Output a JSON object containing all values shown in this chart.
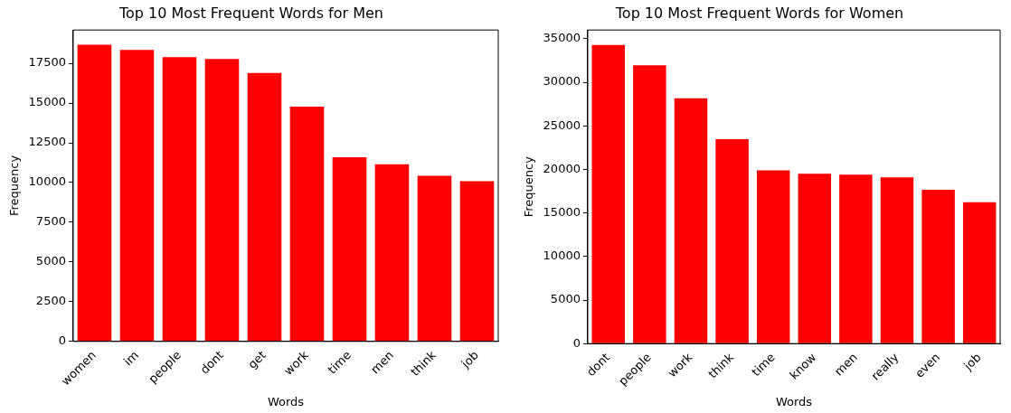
{
  "chart_data": [
    {
      "type": "bar",
      "title": "Top 10 Most Frequent Words for Men",
      "xlabel": "Words",
      "ylabel": "Frequency",
      "categories": [
        "women",
        "im",
        "people",
        "dont",
        "get",
        "work",
        "time",
        "men",
        "think",
        "job"
      ],
      "values": [
        18670,
        18340,
        17890,
        17780,
        16890,
        14770,
        11590,
        11150,
        10420,
        10090
      ],
      "color": "#ff0000",
      "ylim": [
        0,
        19600
      ],
      "yticks": [
        0,
        2500,
        5000,
        7500,
        10000,
        12500,
        15000,
        17500
      ]
    },
    {
      "type": "bar",
      "title": "Top 10 Most Frequent Words for Women",
      "xlabel": "Words",
      "ylabel": "Frequency",
      "categories": [
        "dont",
        "people",
        "work",
        "think",
        "time",
        "know",
        "men",
        "really",
        "even",
        "job"
      ],
      "values": [
        34290,
        31940,
        28160,
        23470,
        19900,
        19490,
        19390,
        19080,
        17650,
        16220
      ],
      "color": "#ff0000",
      "ylim": [
        0,
        36000
      ],
      "yticks": [
        0,
        5000,
        10000,
        15000,
        20000,
        25000,
        30000,
        35000
      ]
    }
  ]
}
